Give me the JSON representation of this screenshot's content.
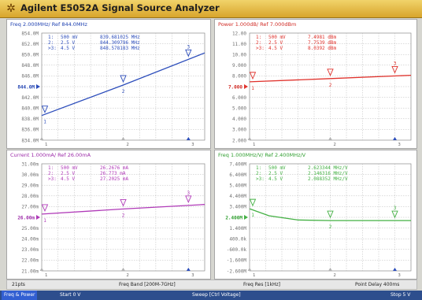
{
  "window": {
    "title": "Agilent E5052A Signal Source Analyzer",
    "icon": "sun-icon"
  },
  "panels": [
    {
      "id": "freq",
      "header": "Freq 2.000MHz/ Ref 844.0MHz",
      "color": "#2c4dbb",
      "header_color": "#1d3fb0",
      "ref_value": 844.0,
      "ref_label": "844.0M",
      "y_ticks": [
        "854.0M",
        "852.0M",
        "850.0M",
        "848.0M",
        "846.0M",
        "844.0M",
        "842.0M",
        "840.0M",
        "838.0M",
        "836.0M",
        "834.0M"
      ],
      "y_range": [
        834.0,
        854.0
      ],
      "curve": [
        [
          0,
          838.6
        ],
        [
          0.5,
          844.3
        ],
        [
          1,
          850.3
        ]
      ],
      "markers": [
        {
          "label": "1",
          "x_frac": 0.0,
          "num": "1:",
          "v": "500 mV",
          "val": "839.681025 MHz"
        },
        {
          "label": "2",
          "x_frac": 0.5,
          "num": "2:",
          "v": "2.5 V",
          "val": "844.309796 MHz"
        },
        {
          "label": "3",
          "x_frac": 0.9,
          "num": ">3:",
          "v": "4.5 V",
          "val": "848.578183 MHz"
        }
      ]
    },
    {
      "id": "power",
      "header": "Power 1.000dB/ Ref 7.000dBm",
      "color": "#e0322c",
      "header_color": "#d02a24",
      "ref_value": 7.0,
      "ref_label": "7.000",
      "y_ticks": [
        "12.00",
        "11.00",
        "10.00",
        "9.000",
        "8.000",
        "7.000",
        "6.000",
        "5.000",
        "4.000",
        "3.000",
        "2.000"
      ],
      "y_range": [
        2.0,
        12.0
      ],
      "curve": [
        [
          0,
          7.45
        ],
        [
          0.5,
          7.75
        ],
        [
          1,
          8.06
        ]
      ],
      "markers": [
        {
          "label": "1",
          "x_frac": 0.0,
          "num": "1:",
          "v": "500 mV",
          "val": "7.4981 dBm"
        },
        {
          "label": "2",
          "x_frac": 0.5,
          "num": "2:",
          "v": "2.5 V",
          "val": "7.7539 dBm"
        },
        {
          "label": "3",
          "x_frac": 0.9,
          "num": ">3:",
          "v": "4.5 V",
          "val": "8.0392 dBm"
        }
      ]
    },
    {
      "id": "current",
      "header": "Current 1.000mA/ Ref 26.00mA",
      "color": "#b03ab8",
      "header_color": "#9c2aa8",
      "ref_value": 26.0,
      "ref_label": "26.00m",
      "y_ticks": [
        "31.00m",
        "30.00m",
        "29.00m",
        "28.00m",
        "27.00m",
        "26.00m",
        "25.00m",
        "24.00m",
        "23.00m",
        "22.00m",
        "21.00m"
      ],
      "y_range": [
        21.0,
        31.0
      ],
      "curve": [
        [
          0,
          26.3
        ],
        [
          0.5,
          26.78
        ],
        [
          1,
          27.2
        ]
      ],
      "markers": [
        {
          "label": "1",
          "x_frac": 0.0,
          "num": "1:",
          "v": "500 mV",
          "val": "26.2676 mA"
        },
        {
          "label": "2",
          "x_frac": 0.5,
          "num": "2:",
          "v": "2.5 V",
          "val": "26.773 mA"
        },
        {
          "label": "3",
          "x_frac": 0.9,
          "num": ">3:",
          "v": "4.5 V",
          "val": "27.2025 mA"
        }
      ]
    },
    {
      "id": "freq-sens",
      "header": "Freq 1.000MHz/V/ Ref 2.400MHz/V",
      "color": "#43b043",
      "header_color": "#2f9e2f",
      "ref_value": 2.4,
      "ref_label": "2.400M",
      "y_ticks": [
        "7.400M",
        "6.400M",
        "5.400M",
        "4.400M",
        "3.400M",
        "2.400M",
        "1.400M",
        "400.0k",
        "-600.0k",
        "-1.600M",
        "-2.600M"
      ],
      "y_range": [
        -2.6,
        7.4
      ],
      "curve": [
        [
          0,
          3.2
        ],
        [
          0.12,
          2.55
        ],
        [
          0.3,
          2.15
        ],
        [
          0.5,
          2.1
        ],
        [
          0.75,
          2.1
        ],
        [
          1,
          2.1
        ]
      ],
      "markers": [
        {
          "label": "1",
          "x_frac": 0.0,
          "num": "1:",
          "v": "500 mV",
          "val": "2.623344 MHz/V"
        },
        {
          "label": "2",
          "x_frac": 0.5,
          "num": "2:",
          "v": "2.5 V",
          "val": "2.146316 MHz/V"
        },
        {
          "label": "3",
          "x_frac": 0.9,
          "num": ">3:",
          "v": "4.5 V",
          "val": "2.088352 MHz/V"
        }
      ]
    }
  ],
  "bottom_bar": {
    "points": "21pts",
    "band": "Freq Band [200M-7GHz]",
    "res": "Freq Res [1kHz]",
    "delay": "Point Delay 400ms"
  },
  "status_bar": {
    "mode": "Freq & Power",
    "start": "Start 0 V",
    "sweep": "Sweep [Ctrl Voltage]",
    "stop": "Stop 5 V"
  }
}
